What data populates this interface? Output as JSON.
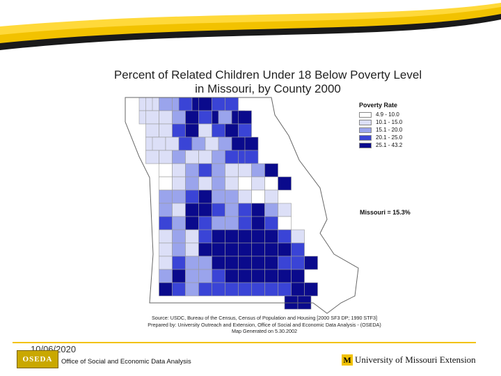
{
  "title_line1": "Percent of Related Children Under 18 Below Poverty Level",
  "title_line2": "in Missouri, by County  2000",
  "legend": {
    "title": "Poverty Rate",
    "classes": [
      {
        "label": "4.9 - 10.0",
        "color": "#ffffff"
      },
      {
        "label": "10.1 - 15.0",
        "color": "#dcdff7"
      },
      {
        "label": "15.1 - 20.0",
        "color": "#9aa4ec"
      },
      {
        "label": "20.1 - 25.0",
        "color": "#3a44d6"
      },
      {
        "label": "25.1 - 43.2",
        "color": "#0a0a8c"
      }
    ]
  },
  "state_rate": "Missouri = 15.3%",
  "source": {
    "line1": "Source:  USDC, Bureau of the Census, Census of Population and Housing [2000 SF3 DP; 1990 STF3]",
    "line2": "Prepared by: University Outreach and Extension, Office of Social and Economic Data Analysis - (OSEDA)",
    "line3": "Map Generated on 5.30.2002"
  },
  "footer": {
    "date": "10/06/2020",
    "logo_text": "OSEDA",
    "office": "Office of Social and Economic Data Analysis",
    "extension": "University of Missouri Extension",
    "extension_mark": "M"
  },
  "colors": {
    "accent_gold": "#f2c200",
    "swoosh_dark": "#1a1a1a"
  }
}
